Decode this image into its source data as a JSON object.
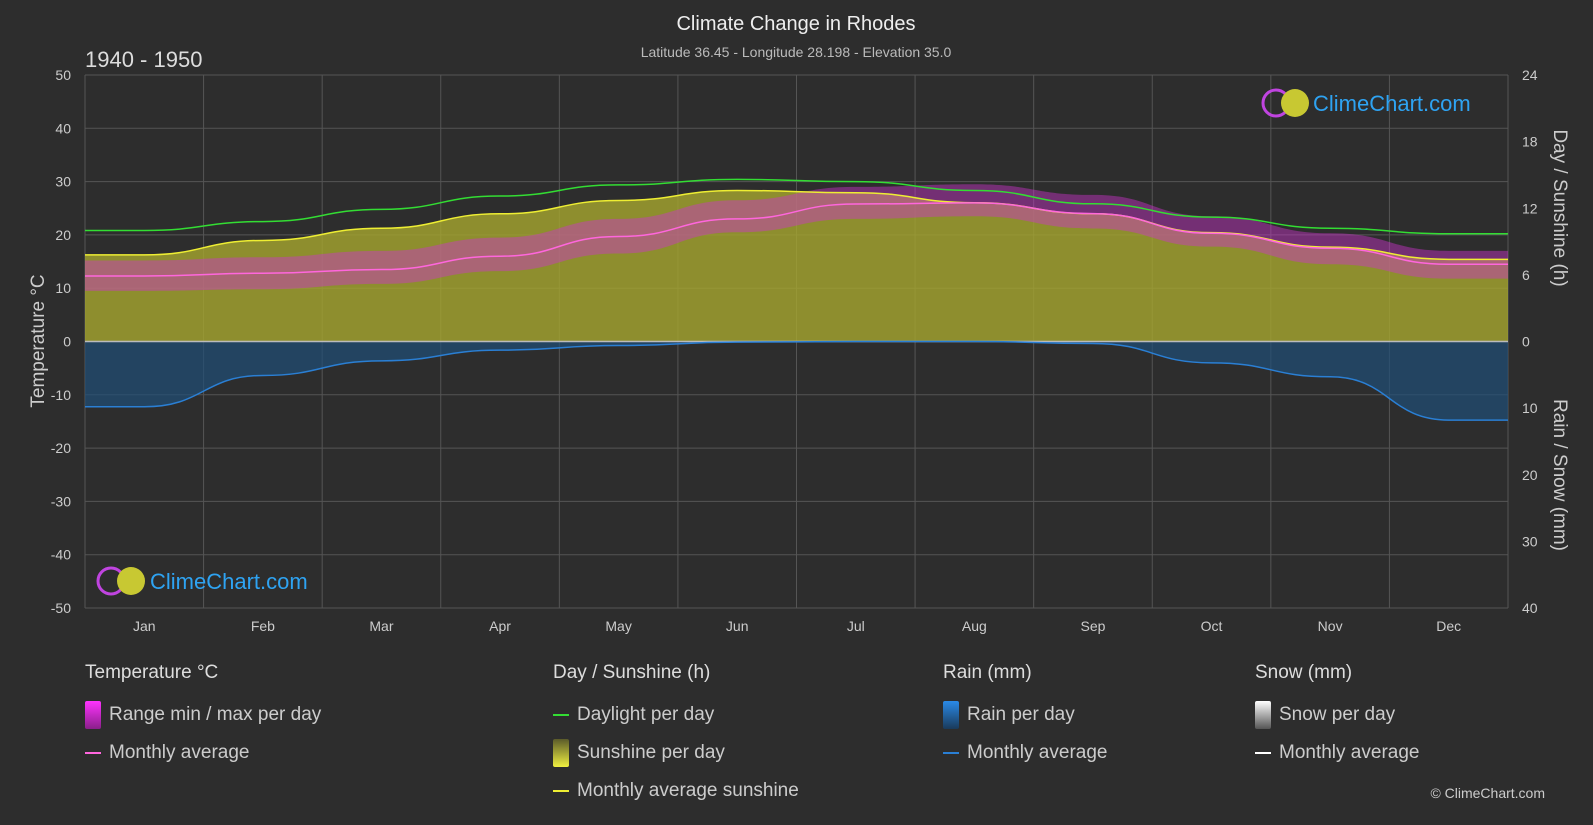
{
  "header": {
    "title": "Climate Change in Rhodes",
    "subtitle": "Latitude 36.45 - Longitude 28.198 - Elevation 35.0",
    "period": "1940 - 1950"
  },
  "branding": {
    "logo_text": "ClimeChart.com",
    "copyright": "© ClimeChart.com"
  },
  "legend": {
    "temperature": {
      "heading": "Temperature °C",
      "range_label": "Range min / max per day",
      "avg_label": "Monthly average"
    },
    "sunshine": {
      "heading": "Day / Sunshine (h)",
      "daylight_label": "Daylight per day",
      "sunshine_label": "Sunshine per day",
      "avg_label": "Monthly average sunshine"
    },
    "rain": {
      "heading": "Rain (mm)",
      "per_day_label": "Rain per day",
      "avg_label": "Monthly average"
    },
    "snow": {
      "heading": "Snow (mm)",
      "per_day_label": "Snow per day",
      "avg_label": "Monthly average"
    }
  },
  "colors": {
    "background": "#2d2d2d",
    "grid": "#555555",
    "temperature_avg": "#ff66dd",
    "temperature_range": "#cc33cc",
    "daylight": "#33dd33",
    "sunshine_fill": "#a6a62e",
    "sunshine_avg": "#eeee33",
    "rain": "#2a7fd4",
    "rain_fill": "#1f4f77",
    "snow": "#ffffff",
    "logo": "#2ea3f2"
  },
  "chart_data": {
    "type": "area",
    "months": [
      "Jan",
      "Feb",
      "Mar",
      "Apr",
      "May",
      "Jun",
      "Jul",
      "Aug",
      "Sep",
      "Oct",
      "Nov",
      "Dec"
    ],
    "left_axis": {
      "label": "Temperature °C",
      "ylim": [
        -50,
        50
      ],
      "ticks": [
        -50,
        -40,
        -30,
        -20,
        -10,
        0,
        10,
        20,
        30,
        40,
        50
      ]
    },
    "right_axis_top": {
      "label": "Day / Sunshine (h)",
      "ylim": [
        0,
        24
      ],
      "ticks": [
        0,
        6,
        12,
        18,
        24
      ]
    },
    "right_axis_bottom": {
      "label": "Rain / Snow (mm)",
      "ylim": [
        0,
        40
      ],
      "ticks": [
        0,
        10,
        20,
        30,
        40
      ]
    },
    "series": [
      {
        "name": "Monthly average",
        "unit": "°C",
        "values": [
          12.3,
          12.8,
          13.5,
          16.0,
          19.7,
          23.0,
          25.8,
          26.0,
          24.0,
          20.3,
          17.5,
          14.5
        ]
      },
      {
        "name": "Range min / max per day",
        "unit": "°C",
        "min": [
          9.5,
          9.8,
          10.8,
          13.2,
          16.5,
          20.5,
          23.0,
          23.5,
          21.2,
          17.8,
          14.5,
          11.8
        ],
        "max": [
          15.2,
          15.8,
          17.0,
          19.5,
          23.0,
          26.5,
          29.0,
          29.5,
          27.5,
          23.5,
          20.3,
          17.0
        ]
      },
      {
        "name": "Daylight per day",
        "unit": "h",
        "values": [
          10.0,
          10.8,
          11.9,
          13.1,
          14.1,
          14.6,
          14.4,
          13.6,
          12.4,
          11.2,
          10.2,
          9.7
        ]
      },
      {
        "name": "Monthly average sunshine",
        "unit": "h",
        "values": [
          7.8,
          9.1,
          10.2,
          11.5,
          12.7,
          13.6,
          13.4,
          12.5,
          11.5,
          9.8,
          8.5,
          7.4
        ]
      },
      {
        "name": "Rain monthly average",
        "unit": "mm",
        "values": [
          9.8,
          5.1,
          2.9,
          1.3,
          0.6,
          0.1,
          0.0,
          0.0,
          0.3,
          3.2,
          5.3,
          11.8
        ]
      },
      {
        "name": "Snow monthly average",
        "unit": "mm",
        "values": [
          0,
          0,
          0,
          0,
          0,
          0,
          0,
          0,
          0,
          0,
          0,
          0
        ]
      }
    ],
    "grid": true
  }
}
